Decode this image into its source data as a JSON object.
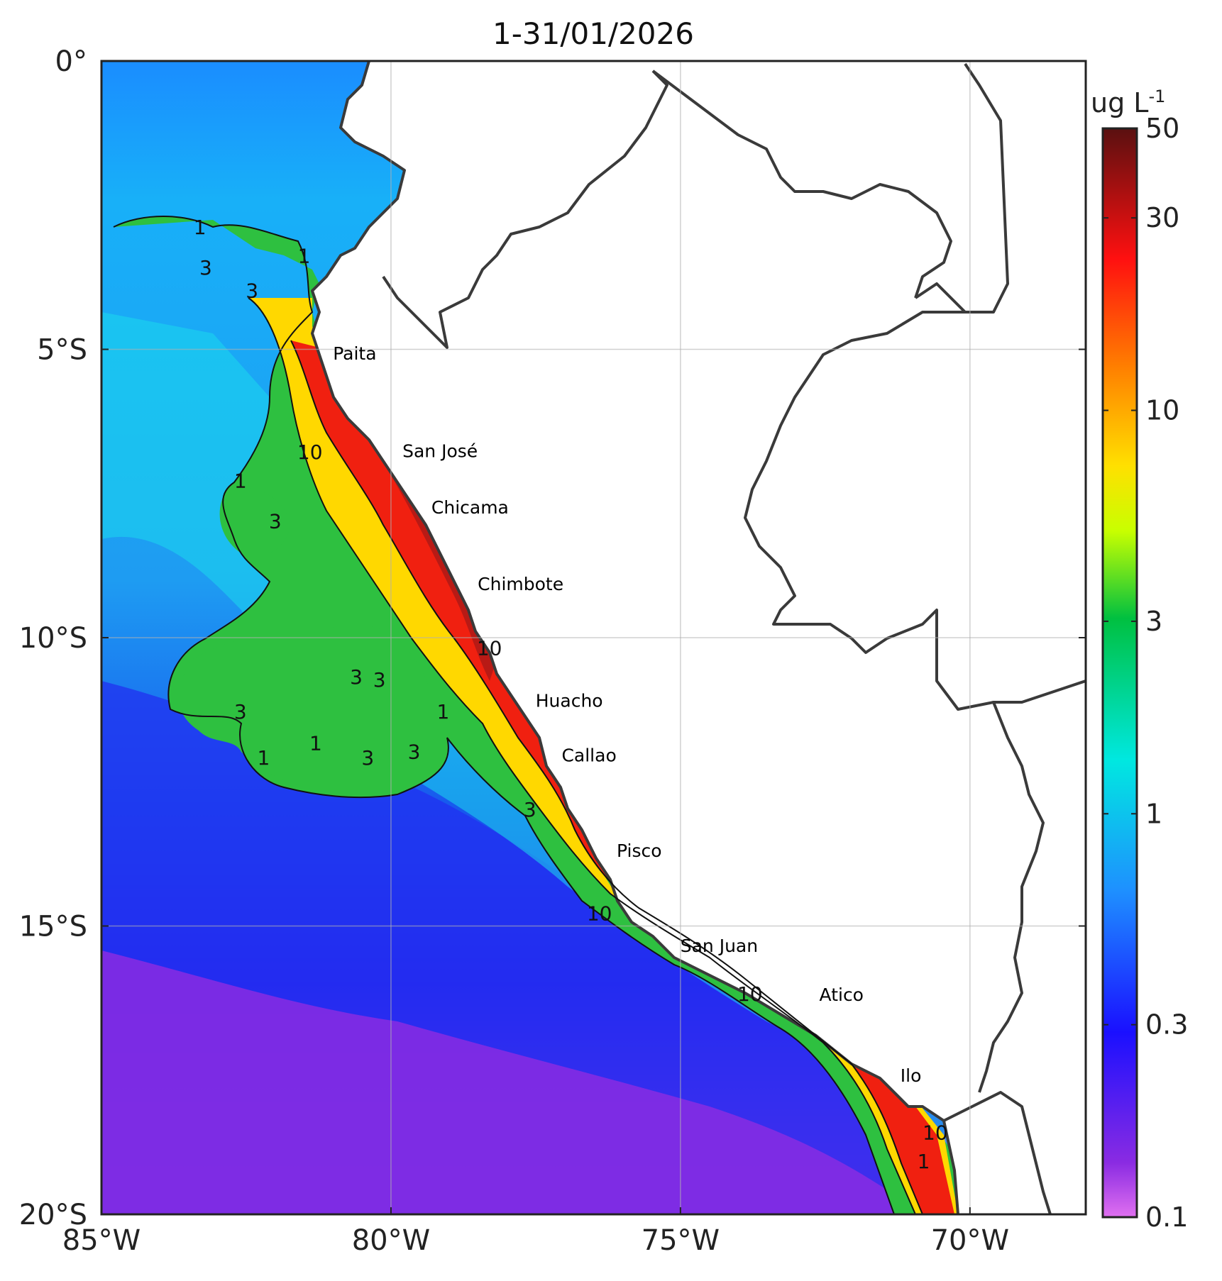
{
  "title": "1-31/01/2026",
  "map": {
    "lon_range": [
      -85,
      -68
    ],
    "lat_range": [
      -20,
      0
    ],
    "lon_ticks": [
      {
        "lon": -85,
        "label": "85°W"
      },
      {
        "lon": -80,
        "label": "80°W"
      },
      {
        "lon": -75,
        "label": "75°W"
      },
      {
        "lon": -70,
        "label": "70°W"
      }
    ],
    "lat_ticks": [
      {
        "lat": 0,
        "label": "0°"
      },
      {
        "lat": -5,
        "label": "5°S"
      },
      {
        "lat": -10,
        "label": "10°S"
      },
      {
        "lat": -15,
        "label": "15°S"
      },
      {
        "lat": -20,
        "label": "20°S"
      }
    ],
    "grid": true
  },
  "cities": [
    {
      "name": "Paita",
      "lon": -81.1,
      "lat": -5.08
    },
    {
      "name": "San José",
      "lon": -79.9,
      "lat": -6.77
    },
    {
      "name": "Chicama",
      "lon": -79.4,
      "lat": -7.75
    },
    {
      "name": "Chimbote",
      "lon": -78.6,
      "lat": -9.08
    },
    {
      "name": "Huacho",
      "lon": -77.6,
      "lat": -11.1
    },
    {
      "name": "Callao",
      "lon": -77.15,
      "lat": -12.05
    },
    {
      "name": "Pisco",
      "lon": -76.2,
      "lat": -13.7
    },
    {
      "name": "San Juan",
      "lon": -75.1,
      "lat": -15.35
    },
    {
      "name": "Atico",
      "lon": -72.7,
      "lat": -16.2
    },
    {
      "name": "Ilo",
      "lon": -71.3,
      "lat": -17.6
    }
  ],
  "contour_labels": [
    {
      "text": "1",
      "lon": -83.3,
      "lat": -3.0
    },
    {
      "text": "1",
      "lon": -81.5,
      "lat": -3.5
    },
    {
      "text": "3",
      "lon": -83.2,
      "lat": -3.7
    },
    {
      "text": "3",
      "lon": -82.4,
      "lat": -4.1
    },
    {
      "text": "10",
      "lon": -81.4,
      "lat": -6.9
    },
    {
      "text": "1",
      "lon": -82.6,
      "lat": -7.4
    },
    {
      "text": "3",
      "lon": -82.0,
      "lat": -8.1
    },
    {
      "text": "10",
      "lon": -78.3,
      "lat": -10.3
    },
    {
      "text": "3",
      "lon": -80.6,
      "lat": -10.8
    },
    {
      "text": "3",
      "lon": -80.2,
      "lat": -10.85
    },
    {
      "text": "1",
      "lon": -79.1,
      "lat": -11.4
    },
    {
      "text": "3",
      "lon": -82.6,
      "lat": -11.4
    },
    {
      "text": "1",
      "lon": -81.3,
      "lat": -11.95
    },
    {
      "text": "1",
      "lon": -82.2,
      "lat": -12.2
    },
    {
      "text": "3",
      "lon": -80.4,
      "lat": -12.2
    },
    {
      "text": "3",
      "lon": -79.6,
      "lat": -12.1
    },
    {
      "text": "3",
      "lon": -77.6,
      "lat": -13.1
    },
    {
      "text": "10",
      "lon": -76.4,
      "lat": -14.9
    },
    {
      "text": "10",
      "lon": -73.8,
      "lat": -16.3
    },
    {
      "text": "10",
      "lon": -70.6,
      "lat": -18.7
    },
    {
      "text": "1",
      "lon": -70.8,
      "lat": -19.2
    }
  ],
  "colorbar": {
    "unit": "ug L",
    "unit_exponent": "-1",
    "scale": "log",
    "range": [
      0.1,
      50
    ],
    "ticks": [
      {
        "value": 50,
        "label": "50"
      },
      {
        "value": 30,
        "label": "30"
      },
      {
        "value": 10,
        "label": "10"
      },
      {
        "value": 3,
        "label": "3"
      },
      {
        "value": 1,
        "label": "1"
      },
      {
        "value": 0.3,
        "label": "0.3"
      },
      {
        "value": 0.1,
        "label": "0.1"
      }
    ],
    "colors": [
      "#d020e0",
      "#8a2be2",
      "#1a10ff",
      "#1e90ff",
      "#00e8e0",
      "#00c040",
      "#c8ff00",
      "#ffe000",
      "#ff8000",
      "#ff1010",
      "#5a1010"
    ]
  },
  "colors": {
    "land": "#ffffff",
    "border": "#3a3a3a",
    "grid": "#b0b0b0"
  }
}
